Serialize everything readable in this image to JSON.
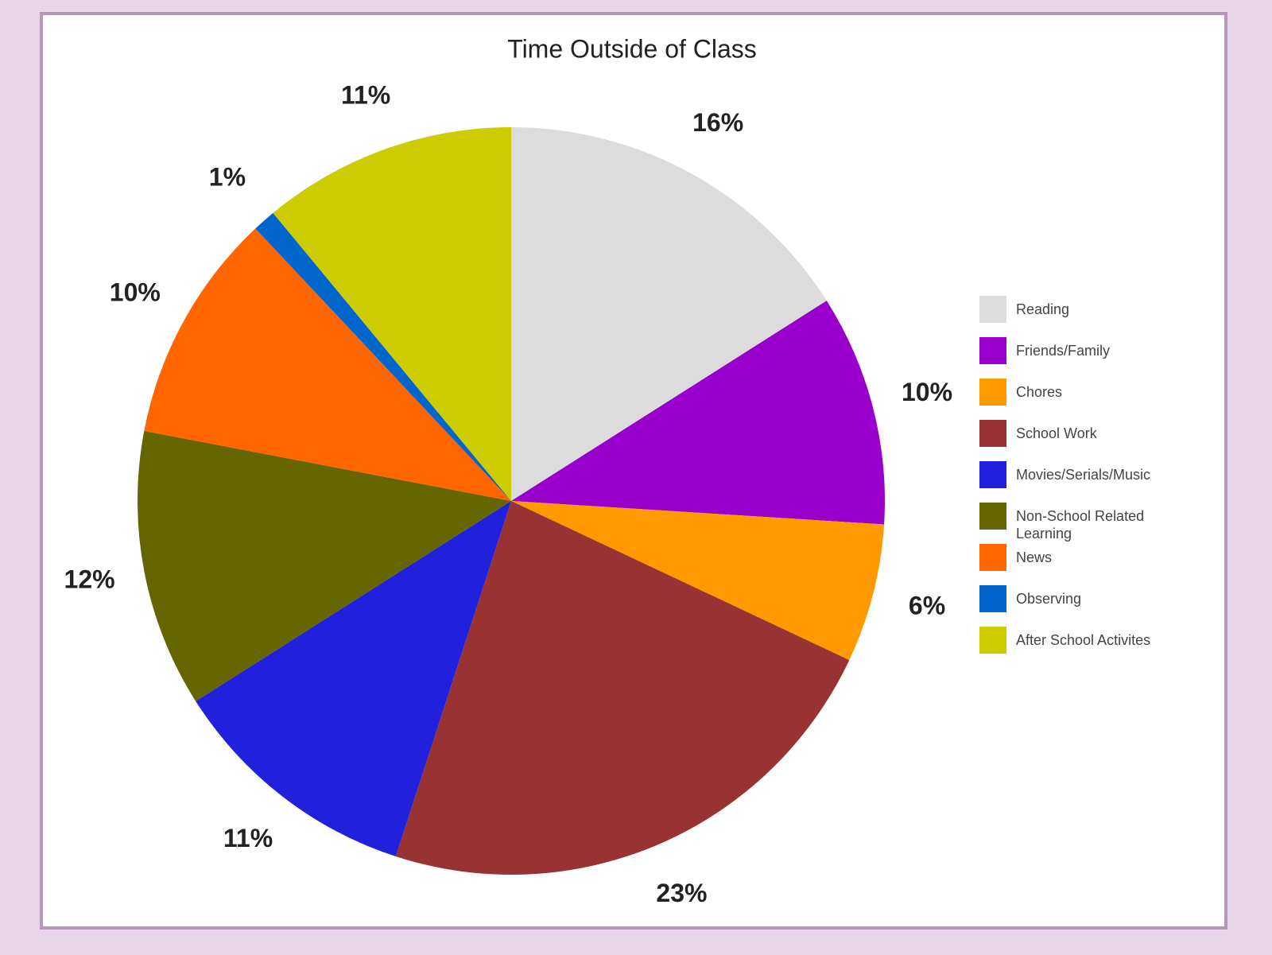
{
  "chart_data": {
    "type": "pie",
    "title": "Time Outside of Class",
    "categories": [
      "Reading",
      "Friends/Family",
      "Chores",
      "School Work",
      "Movies/Serials/Music",
      "Non-School Related Learning",
      "News",
      "Observing",
      "After School Activites"
    ],
    "values": [
      16,
      10,
      6,
      23,
      11,
      12,
      10,
      1,
      11
    ],
    "value_labels": [
      "16%",
      "10%",
      "6%",
      "23%",
      "11%",
      "12%",
      "10%",
      "1%",
      "11%"
    ],
    "colors": [
      "#dcdcdc",
      "#9900cc",
      "#ff9900",
      "#993333",
      "#2020dd",
      "#666600",
      "#ff6600",
      "#0066cc",
      "#cccc00"
    ]
  }
}
